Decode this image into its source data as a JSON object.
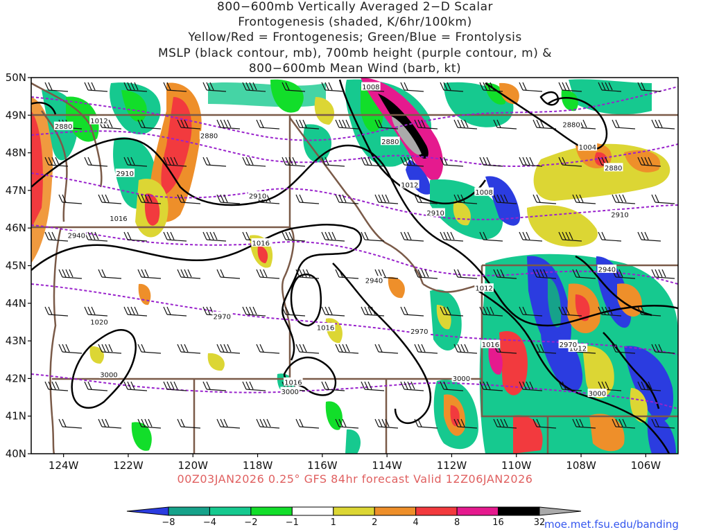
{
  "title_lines": [
    "800−600mb Vertically Averaged 2−D Scalar",
    "Frontogenesis (shaded, K/6hr/100km)",
    "Yellow/Red = Frontogenesis;  Green/Blue = Frontolysis",
    "MSLP (black contour, mb), 700mb height (purple contour, m) &",
    "800−600mb Mean Wind (barb, kt)"
  ],
  "footer": "00Z03JAN2026 0.25° GFS 84hr forecast Valid 12Z06JAN2026",
  "credit": "moe.met.fsu.edu/banding",
  "map": {
    "lat_range": [
      40,
      50
    ],
    "lon_range": [
      -125,
      -105
    ],
    "lat_labels": [
      "40N",
      "41N",
      "42N",
      "43N",
      "44N",
      "45N",
      "46N",
      "47N",
      "48N",
      "49N",
      "50N"
    ],
    "lon_labels": [
      "124W",
      "122W",
      "120W",
      "118W",
      "116W",
      "114W",
      "112W",
      "110W",
      "108W",
      "106W"
    ],
    "colors": {
      "mslp_contour": "#000000",
      "height_contour": "#9922cc",
      "borders": "#7a5a48"
    },
    "mslp_labels": [
      {
        "text": "1008",
        "lon": -114.5,
        "lat": 49.75
      },
      {
        "text": "1012",
        "lon": -122.9,
        "lat": 48.85
      },
      {
        "text": "1012",
        "lon": -113.3,
        "lat": 47.15
      },
      {
        "text": "1008",
        "lon": -111.0,
        "lat": 46.95
      },
      {
        "text": "1004",
        "lon": -107.8,
        "lat": 48.15
      },
      {
        "text": "1016",
        "lon": -122.3,
        "lat": 46.25
      },
      {
        "text": "1016",
        "lon": -117.9,
        "lat": 45.6
      },
      {
        "text": "1012",
        "lon": -111.0,
        "lat": 44.4
      },
      {
        "text": "1016",
        "lon": -115.9,
        "lat": 43.35
      },
      {
        "text": "1016",
        "lon": -110.8,
        "lat": 42.9
      },
      {
        "text": "1012",
        "lon": -108.1,
        "lat": 42.8
      },
      {
        "text": "1020",
        "lon": -122.9,
        "lat": 43.5
      },
      {
        "text": "1016",
        "lon": -116.9,
        "lat": 41.9
      }
    ],
    "height_labels": [
      {
        "text": "2880",
        "lon": -124.0,
        "lat": 48.7
      },
      {
        "text": "2880",
        "lon": -119.5,
        "lat": 48.45
      },
      {
        "text": "2880",
        "lon": -113.9,
        "lat": 48.3
      },
      {
        "text": "2880",
        "lon": -108.3,
        "lat": 48.75
      },
      {
        "text": "2880",
        "lon": -107.0,
        "lat": 47.6
      },
      {
        "text": "2910",
        "lon": -122.1,
        "lat": 47.45
      },
      {
        "text": "2910",
        "lon": -118.0,
        "lat": 46.85
      },
      {
        "text": "2910",
        "lon": -112.5,
        "lat": 46.4
      },
      {
        "text": "2910",
        "lon": -106.8,
        "lat": 46.35
      },
      {
        "text": "2940",
        "lon": -123.6,
        "lat": 45.8
      },
      {
        "text": "2940",
        "lon": -114.4,
        "lat": 44.6
      },
      {
        "text": "2940",
        "lon": -107.2,
        "lat": 44.9
      },
      {
        "text": "2970",
        "lon": -119.1,
        "lat": 43.65
      },
      {
        "text": "2970",
        "lon": -113.0,
        "lat": 43.25
      },
      {
        "text": "2970",
        "lon": -108.4,
        "lat": 42.9
      },
      {
        "text": "3000",
        "lon": -122.6,
        "lat": 42.1
      },
      {
        "text": "3000",
        "lon": -117.0,
        "lat": 41.65
      },
      {
        "text": "3000",
        "lon": -111.7,
        "lat": 42.0
      },
      {
        "text": "3000",
        "lon": -107.5,
        "lat": 41.6
      }
    ]
  },
  "colorbar": {
    "labels": [
      "−8",
      "−4",
      "−2",
      "−1",
      "1",
      "2",
      "4",
      "8",
      "16",
      "32"
    ],
    "colors": [
      "#2b3ce0",
      "#16a28a",
      "#16c98f",
      "#12de2a",
      "#ffffff",
      "#dcd634",
      "#ee8f2a",
      "#f23a3e",
      "#e51a8e",
      "#000000",
      "#aaaaaa"
    ]
  }
}
